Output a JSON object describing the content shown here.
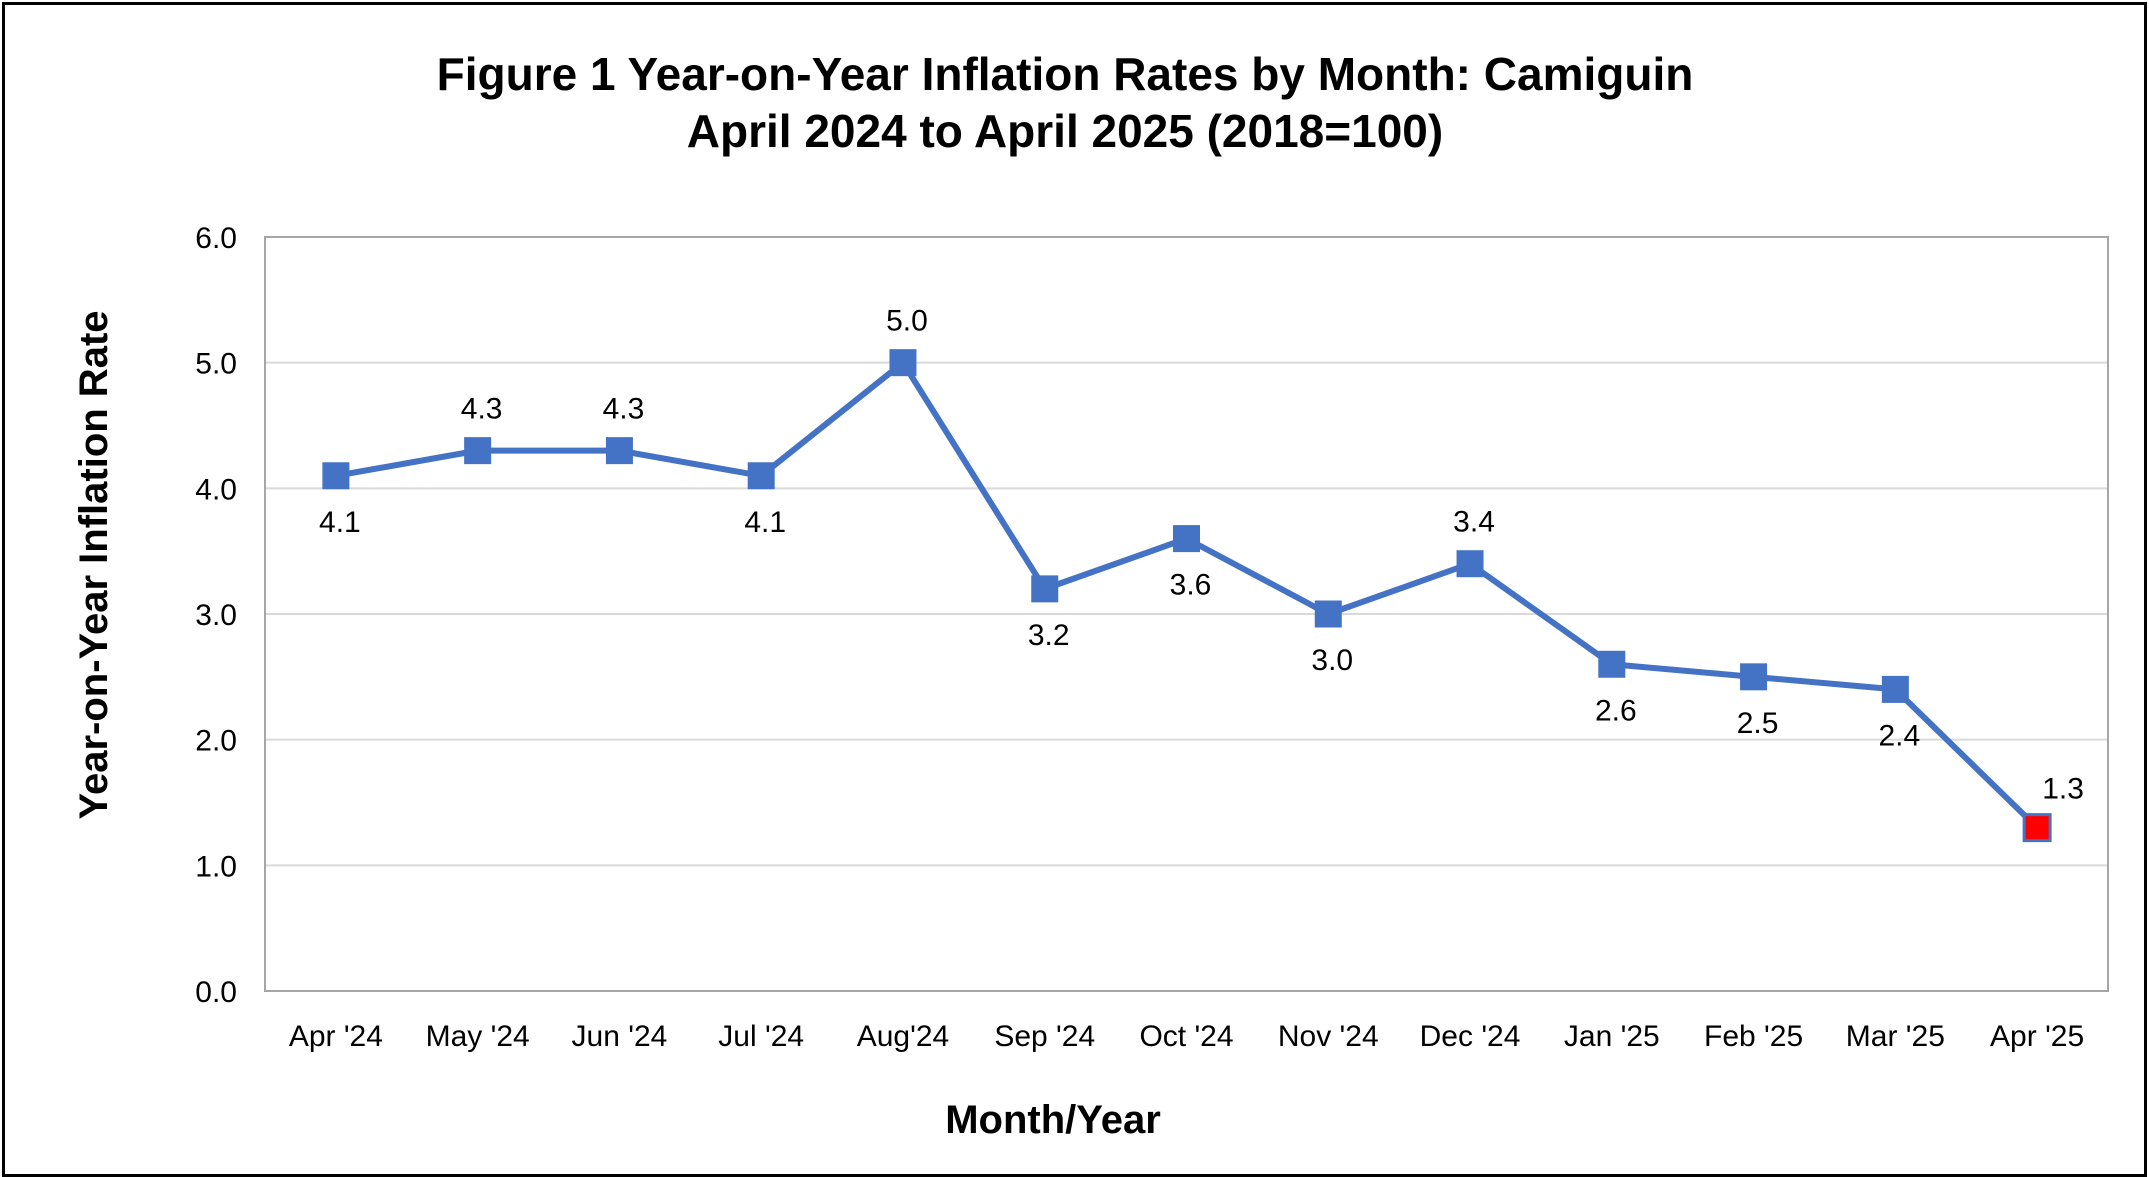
{
  "chart_data": {
    "type": "line",
    "title": "Figure 1  Year-on-Year Inflation Rates by Month: Camiguin",
    "subtitle": "April 2024 to April 2025 (2018=100)",
    "xlabel": "Month/Year",
    "ylabel": "Year-on-Year Inflation Rate",
    "ylim": [
      0,
      6
    ],
    "y_ticks": [
      "0.0",
      "1.0",
      "2.0",
      "3.0",
      "4.0",
      "5.0",
      "6.0"
    ],
    "grid": true,
    "legend": "none",
    "categories": [
      "Apr '24",
      "May '24",
      "Jun '24",
      "Jul '24",
      "Aug'24",
      "Sep '24",
      "Oct '24",
      "Nov '24",
      "Dec '24",
      "Jan '25",
      "Feb '25",
      "Mar '25",
      "Apr '25"
    ],
    "series": [
      {
        "values": [
          4.1,
          4.3,
          4.3,
          4.1,
          5.0,
          3.2,
          3.6,
          3.0,
          3.4,
          2.6,
          2.5,
          2.4,
          1.3
        ],
        "data_labels": [
          "4.1",
          "4.3",
          "4.3",
          "4.1",
          "5.0",
          "3.2",
          "3.6",
          "3.0",
          "3.4",
          "2.6",
          "2.5",
          "2.4",
          "1.3"
        ],
        "label_position": [
          "below",
          "above",
          "above",
          "below",
          "above",
          "below",
          "below",
          "below",
          "above",
          "below",
          "below",
          "below",
          "above"
        ],
        "color": "#4472C4",
        "highlight_last_color": "#FF0000"
      }
    ]
  },
  "colors": {
    "line": "#4472C4",
    "highlight": "#FF0000",
    "grid": "#D9D9D9",
    "axis": "#A6A6A6",
    "frame": "#000000"
  }
}
